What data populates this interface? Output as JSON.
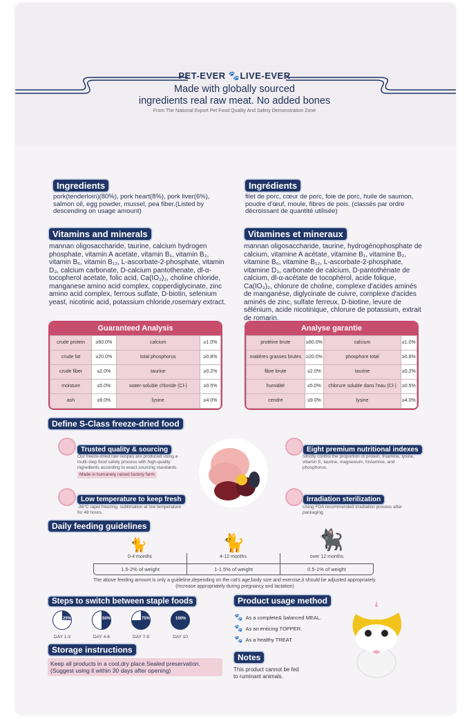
{
  "header": {
    "brand": "PET-EVER",
    "brand2": "LIVE-EVER",
    "tagline1": "Made with globally sourced",
    "tagline2": "ingredients real raw meat. No added bones",
    "source": "From The National Export Pet Food Quality And Safety Demonstration Zone"
  },
  "en": {
    "ingredients_title": "Ingredients",
    "ingredients": "pork(tenderloin)(80%), pork heart(8%), pork liver(6%), salmon oil, egg powder, mussel, pea fiber.(Listed by descending on usage amount)",
    "vitamins_title": "Vitamins and minerals",
    "vitamins": "mannan oligosaccharide, taurine, calcium hydrogen phosphate, vitamin A acetate, vitamin B₁, vitamin B₂, vitamin B₆, vitamin B₁₂, L-ascorbate-2-phosphate, vitamin D₃, calcium carbonate, D-calcium pantothenate, dl-α-tocopherol acetate, folic acid, Ca(IO₃)₂, choline chloride, manganese amino acid complex, copperdiglycinate, zinc amino acid complex, ferrous sulfate, D-biotin, selenium yeast, nicotinic acid, potassium chloride,rosemary extract.",
    "analysis_title": "Guaranteed Analysis",
    "analysis": [
      [
        "crude protein",
        "≥60.0%",
        "calcium",
        "≥1.0%"
      ],
      [
        "crude fat",
        "≥20.0%",
        "total phosphorus",
        "≥0.8%"
      ],
      [
        "crude fiber",
        "≤2.0%",
        "taurine",
        "≥0.2%"
      ],
      [
        "moisture",
        "≤5.0%",
        "water-soluble chloride (Cl-)",
        "≥0.5%"
      ],
      [
        "ash",
        "≤9.0%",
        "lysine",
        "≥4.0%"
      ]
    ]
  },
  "fr": {
    "ingredients_title": "Ingrédients",
    "ingredients": "filet de porc, cœur de porc, foie de porc, huile de saumon, poudre d'œuf, moule, fibres de pois. (classés par ordre décroissant de quantité utilisée)",
    "vitamins_title": "Vitamines et mineraux",
    "vitamins": "mannan oligosaccharide, taurine, hydrogénophosphate de calcium, vitamine A acétate, vitamine B₁, vitamine B₂, vitamine B₆, vitamine B₁₂, L-ascorbate-2-phosphate, vitamine D₃, carbonate de calcium, D-pantothénate de calcium, dl-α-acétate de tocophérol, acide folique, Ca(IO₃)₂, chlorure de choline, complexe d'acides aminés de manganèse, diglycinate de cuivre, complexe d'acides aminés de zinc, sulfate ferreux, D-biotine, levure de sélénium, acide nicotinique, chlorure de potassium, extrait de romarin.",
    "analysis_title": "Analyse garantie",
    "analysis": [
      [
        "protéine brute",
        "≥60.0%",
        "calcium",
        "≥1.0%"
      ],
      [
        "matières grasses brutes",
        "≥20.0%",
        "phosphore total",
        "≥0.8%"
      ],
      [
        "fibre brute",
        "≤2.0%",
        "taurine",
        "≥0.2%"
      ],
      [
        "humidité",
        "≤5.0%",
        "chlorure soluble dans l'eau (Cl-)",
        "≥0.5%"
      ],
      [
        "cendre",
        "≤9.0%",
        "lysine",
        "≥4.0%"
      ]
    ]
  },
  "sclass": {
    "title": "Define S-Class freeze-dried food",
    "f1_title": "Trusted quality & sourcing",
    "f1_text": "Our freeze-dried raw recipes are produced using a multi-step food safety process with high-quality ingredients according to exact sourcing standards.",
    "f1_badge": "Made in humanely raised factory farm",
    "f2_title": "Low temperature to keep fresh",
    "f2_text": "-36°C rapid freezing, sublimation at low temperature for 48 hours.",
    "f3_title": "Eight premium nutritional indexes",
    "f3_text": "Strictly control the proportion of protein, thiamine, lysine, vitamin E, taurine, magnesium, histamine, and phosphorus.",
    "f4_title": "Irradiation sterilization",
    "f4_text": "Using FDA recommended irradiation process after packaging."
  },
  "feeding": {
    "title": "Daily feeding guidelines",
    "ages": [
      "0-4 months",
      "4-12 months",
      "over 12 months"
    ],
    "amounts": [
      "1.5-2% of weight",
      "1-1.5% of weight",
      "0.5-1% of weight"
    ],
    "note": "The above feeding amount is only a guideline,depending on the cat's age,body size and exercise,it should be adjusted appropriately. (Increase appropriately during pregnancy and lactation)"
  },
  "switch": {
    "title": "Steps to switch between staple foods",
    "steps": [
      {
        "pct": "25%",
        "value": 25,
        "day": "DAY 1-3"
      },
      {
        "pct": "50%",
        "value": 50,
        "day": "DAY 4-6"
      },
      {
        "pct": "75%",
        "value": 75,
        "day": "DAY 7-9"
      },
      {
        "pct": "100%",
        "value": 100,
        "day": "DAY 10"
      }
    ]
  },
  "storage": {
    "title": "Storage instructions",
    "text": "Keep all products in a cool,dry place.Sealed preservation. (Suggest using it within 30 days after opening)"
  },
  "usage": {
    "title": "Product usage method",
    "items": [
      "As a complete& balanced MEAL.",
      "As an enticing TOPPER.",
      "As a healthy TREAT."
    ]
  },
  "notes": {
    "title": "Notes",
    "text": "This product cannot be fed to ruminant animals."
  },
  "colors": {
    "navy": "#1f3566",
    "pink": "#c84d6d",
    "pink_light": "#f0d2da"
  }
}
